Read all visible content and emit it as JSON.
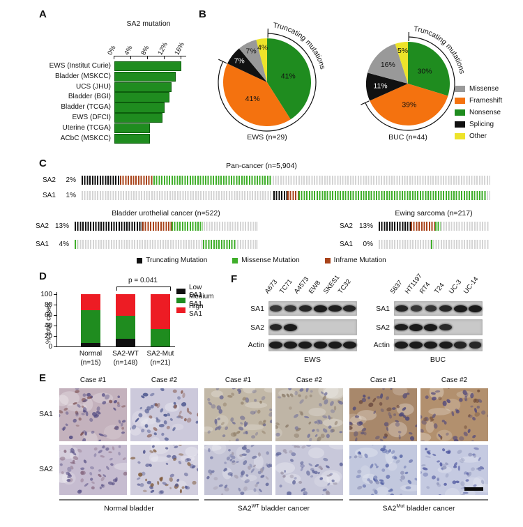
{
  "colors": {
    "green": "#1f8c1f",
    "orange": "#f4720f",
    "gray": "#999999",
    "black": "#111111",
    "yellow": "#ede32a",
    "red": "#ed1c24",
    "missense_tick": "#3fae2a",
    "inframe_tick": "#a8431a",
    "base_tick": "#d4d4d4"
  },
  "chart_data": [
    {
      "id": "A",
      "type": "bar",
      "orientation": "horizontal",
      "title": "SA2 mutation",
      "categories": [
        "EWS (Institut Curie)",
        "Bladder (MSKCC)",
        "UCS (JHU)",
        "Bladder (BGI)",
        "Bladder (TCGA)",
        "EWS (DFCI)",
        "Uterine (TCGA)",
        "ACbC (MSKCC)"
      ],
      "values": [
        15.7,
        14.4,
        13.4,
        12.9,
        11.6,
        11.2,
        8.1,
        8.1
      ],
      "xticks": [
        "0%",
        "4%",
        "8%",
        "12%",
        "16%"
      ],
      "xlim": [
        0,
        16
      ],
      "bar_color": "#1f8c1f"
    },
    {
      "id": "B-EWS",
      "type": "pie",
      "title": "EWS (n=29)",
      "labels": [
        "Nonsense",
        "Frameshift",
        "Splicing",
        "Missense",
        "Other"
      ],
      "values": [
        41,
        41,
        7,
        7,
        4
      ],
      "value_labels": [
        "41%",
        "41%",
        "7%",
        "7%",
        "4%"
      ],
      "colors": [
        "#1f8c1f",
        "#f4720f",
        "#111111",
        "#999999",
        "#ede32a"
      ],
      "annotation": "Truncating mutations",
      "truncating_slices": 2
    },
    {
      "id": "B-BUC",
      "type": "pie",
      "title": "BUC (n=44)",
      "labels": [
        "Nonsense",
        "Frameshift",
        "Splicing",
        "Missense",
        "Other"
      ],
      "values": [
        30,
        39,
        11,
        16,
        5
      ],
      "value_labels": [
        "30%",
        "39%",
        "11%",
        "16%",
        "5%"
      ],
      "colors": [
        "#1f8c1f",
        "#f4720f",
        "#111111",
        "#999999",
        "#ede32a"
      ],
      "annotation": "Truncating mutations",
      "truncating_slices": 2
    },
    {
      "id": "D",
      "type": "stacked-bar",
      "ylabel": "% total cases",
      "ylim": [
        0,
        100
      ],
      "yticks": [
        "0",
        "20",
        "40",
        "60",
        "80",
        "100"
      ],
      "categories": [
        [
          "Normal",
          "(n=15)"
        ],
        [
          "SA2-WT",
          "(n=148)"
        ],
        [
          "SA2-Mut",
          "(n=21)"
        ]
      ],
      "series": [
        {
          "name": "Low SA1",
          "color": "#111111",
          "values": [
            7,
            15,
            0
          ]
        },
        {
          "name": "Medium SA1",
          "color": "#1f8c1f",
          "values": [
            63,
            44,
            33
          ]
        },
        {
          "name": "High SA1",
          "color": "#ed1c24",
          "values": [
            30,
            41,
            67
          ]
        }
      ],
      "annotation": "p = 0.041"
    }
  ],
  "panelA": {
    "letter": "A"
  },
  "panelB": {
    "letter": "B",
    "legend": [
      {
        "label": "Missense",
        "color": "#999999"
      },
      {
        "label": "Frameshift",
        "color": "#f4720f"
      },
      {
        "label": "Nonsense",
        "color": "#1f8c1f"
      },
      {
        "label": "Splicing",
        "color": "#111111"
      },
      {
        "label": "Other",
        "color": "#ede32a"
      }
    ]
  },
  "panelC": {
    "letter": "C",
    "sections": [
      {
        "title": "Pan-cancer (n=5,904)",
        "rows": [
          {
            "gene": "SA2",
            "pct": "2%",
            "segments": [
              {
                "kind": "truncating",
                "from": 0,
                "to": 9.4
              },
              {
                "kind": "inframe",
                "from": 9.4,
                "to": 17.6
              },
              {
                "kind": "missense",
                "from": 17.6,
                "to": 46.6
              }
            ]
          },
          {
            "gene": "SA1",
            "pct": "1%",
            "segments": [
              {
                "kind": "truncating",
                "from": 47,
                "to": 50.4
              },
              {
                "kind": "inframe",
                "from": 50.4,
                "to": 53
              },
              {
                "kind": "missense",
                "from": 53,
                "to": 99
              }
            ]
          }
        ]
      },
      {
        "title": "Bladder urothelial cancer (n=522)",
        "rows": [
          {
            "gene": "SA2",
            "pct": "13%",
            "segments": [
              {
                "kind": "truncating",
                "from": 0,
                "to": 37
              },
              {
                "kind": "inframe",
                "from": 37,
                "to": 53
              },
              {
                "kind": "missense",
                "from": 53,
                "to": 70
              }
            ]
          },
          {
            "gene": "SA1",
            "pct": "4%",
            "segments": [
              {
                "kind": "missense",
                "from": 0,
                "to": 1.5
              },
              {
                "kind": "missense",
                "from": 70,
                "to": 88
              }
            ]
          }
        ]
      },
      {
        "title": "Ewing sarcoma (n=217)",
        "rows": [
          {
            "gene": "SA2",
            "pct": "13%",
            "segments": [
              {
                "kind": "truncating",
                "from": 0,
                "to": 29
              },
              {
                "kind": "inframe",
                "from": 29,
                "to": 51
              },
              {
                "kind": "missense",
                "from": 51,
                "to": 56
              }
            ]
          },
          {
            "gene": "SA1",
            "pct": "0%",
            "segments": [
              {
                "kind": "missense",
                "from": 47,
                "to": 49
              }
            ]
          }
        ]
      }
    ],
    "legend": [
      {
        "label": "Truncating Mutation",
        "color": "#111111"
      },
      {
        "label": "Missense Mutation",
        "color": "#3fae2a"
      },
      {
        "label": "Inframe Mutation",
        "color": "#a8431a"
      }
    ]
  },
  "panelD": {
    "letter": "D"
  },
  "panelE": {
    "letter": "E",
    "row_labels": [
      "SA1",
      "SA2"
    ],
    "case_headers": [
      "Case #1",
      "Case #2",
      "Case #1",
      "Case #2",
      "Case #1",
      "Case #2"
    ],
    "groups": [
      {
        "prefix": "Normal bladder",
        "sup": "",
        "rest": ""
      },
      {
        "prefix": "SA2",
        "sup": "WT",
        "rest": " bladder cancer"
      },
      {
        "prefix": "SA2",
        "sup": "Mut",
        "rest": " bladder cancer"
      }
    ],
    "cells": [
      [
        {
          "base": "#c4b2bd",
          "nuc": "#514a82",
          "acc": "#7a4e50"
        },
        {
          "base": "#ccc9db",
          "nuc": "#48538c",
          "acc": "#84574b"
        },
        {
          "base": "#c2b8a7",
          "nuc": "#6b6a92",
          "acc": "#8f7d66"
        },
        {
          "base": "#bfb5a6",
          "nuc": "#70709a",
          "acc": "#8c7c6a"
        },
        {
          "base": "#a8886b",
          "nuc": "#4d4878",
          "acc": "#6b4a3f"
        },
        {
          "base": "#b2906e",
          "nuc": "#52497b",
          "acc": "#74503c"
        }
      ],
      [
        {
          "base": "#c6bcd0",
          "nuc": "#5d5588",
          "acc": "#86687f"
        },
        {
          "base": "#d1cede",
          "nuc": "#4f548c",
          "acc": "#7e5838"
        },
        {
          "base": "#c4c4d6",
          "nuc": "#62689a",
          "acc": "#9d96a6"
        },
        {
          "base": "#c8c8da",
          "nuc": "#5f659a",
          "acc": "#958da0"
        },
        {
          "base": "#c2c8de",
          "nuc": "#4d5ba0",
          "acc": "#8d92b6"
        },
        {
          "base": "#c5cae1",
          "nuc": "#5059a0",
          "acc": "#9096ba"
        }
      ]
    ]
  },
  "panelF": {
    "letter": "F",
    "row_labels": [
      "SA1",
      "SA2",
      "Actin"
    ],
    "groups": [
      {
        "title": "EWS",
        "lanes": [
          "A673",
          "TC71",
          "A4573",
          "EW8",
          "SKES1",
          "TC32"
        ],
        "bands": [
          [
            0.55,
            0.6,
            0.85,
            1,
            0.95,
            0.85
          ],
          [
            0.8,
            1,
            0,
            0,
            0,
            0
          ],
          [
            1,
            1,
            1,
            1,
            1,
            1
          ]
        ]
      },
      {
        "title": "BUC",
        "lanes": [
          "5637",
          "HT1197",
          "RT4",
          "T24",
          "UC-3",
          "UC-14"
        ],
        "bands": [
          [
            0.85,
            0.55,
            0.6,
            0.85,
            1,
            1
          ],
          [
            0.95,
            1,
            1,
            0.75,
            0,
            0
          ],
          [
            1,
            1,
            1,
            1,
            0.85,
            0.8
          ]
        ]
      }
    ]
  }
}
